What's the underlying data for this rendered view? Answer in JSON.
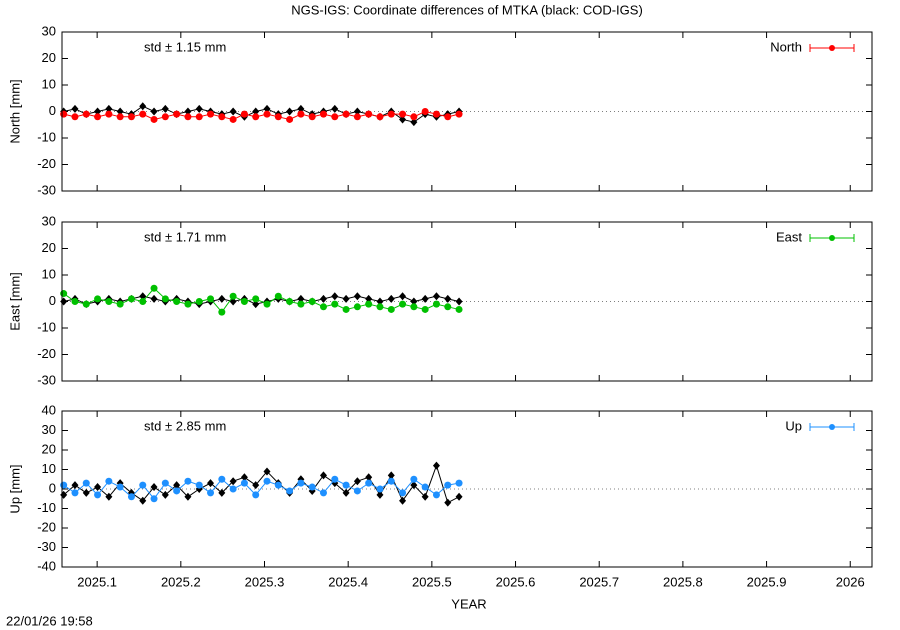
{
  "title": "NGS-IGS: Coordinate differences of MTKA (black: COD-IGS)",
  "timestamp": "22/01/26 19:58",
  "chart_data": [
    {
      "type": "line",
      "ylabel": "North [mm]",
      "annotation": "std ± 1.15 mm",
      "legend": "top right",
      "ylim": [
        -30,
        30
      ],
      "yticks": [
        -30,
        -20,
        -10,
        0,
        10,
        20,
        30
      ],
      "xlim": [
        2025.058,
        2026.026
      ],
      "xticks": [
        2025.1,
        2025.2,
        2025.3,
        2025.4,
        2025.5,
        2025.6,
        2025.7,
        2025.8,
        2025.9,
        2026
      ],
      "x": [
        2025.06,
        2025.0735,
        2025.087,
        2025.1005,
        2025.114,
        2025.1275,
        2025.141,
        2025.1545,
        2025.168,
        2025.1815,
        2025.195,
        2025.2085,
        2025.222,
        2025.2355,
        2025.249,
        2025.2625,
        2025.276,
        2025.2895,
        2025.303,
        2025.3165,
        2025.33,
        2025.3435,
        2025.357,
        2025.3705,
        2025.384,
        2025.3975,
        2025.411,
        2025.4245,
        2025.438,
        2025.4515,
        2025.465,
        2025.4785,
        2025.492,
        2025.5055,
        2025.519,
        2025.5325
      ],
      "series": [
        {
          "color": "#000000",
          "values": [
            0,
            1,
            -1,
            0,
            1,
            0,
            -1,
            2,
            0,
            1,
            -1,
            0,
            1,
            0,
            -1,
            0,
            -2,
            0,
            1,
            -1,
            0,
            1,
            -1,
            0,
            1,
            -1,
            0,
            -1,
            -2,
            0,
            -3,
            -4,
            -1,
            -2,
            -1,
            0
          ]
        },
        {
          "name": "North",
          "color": "#ff0000",
          "values": [
            -1,
            -2,
            -1,
            -2,
            -1,
            -2,
            -2,
            -1,
            -3,
            -2,
            -1,
            -2,
            -2,
            -1,
            -2,
            -3,
            -1,
            -2,
            -1,
            -2,
            -3,
            -1,
            -2,
            -1,
            -2,
            -1,
            -2,
            -1,
            -2,
            -1,
            -1,
            -2,
            0,
            -1,
            -2,
            -1
          ]
        }
      ]
    },
    {
      "type": "line",
      "ylabel": "East [mm]",
      "annotation": "std ± 1.71 mm",
      "legend": "top right",
      "ylim": [
        -30,
        30
      ],
      "yticks": [
        -30,
        -20,
        -10,
        0,
        10,
        20,
        30
      ],
      "xlim": [
        2025.058,
        2026.026
      ],
      "xticks": [
        2025.1,
        2025.2,
        2025.3,
        2025.4,
        2025.5,
        2025.6,
        2025.7,
        2025.8,
        2025.9,
        2026
      ],
      "x": [
        2025.06,
        2025.0735,
        2025.087,
        2025.1005,
        2025.114,
        2025.1275,
        2025.141,
        2025.1545,
        2025.168,
        2025.1815,
        2025.195,
        2025.2085,
        2025.222,
        2025.2355,
        2025.249,
        2025.2625,
        2025.276,
        2025.2895,
        2025.303,
        2025.3165,
        2025.33,
        2025.3435,
        2025.357,
        2025.3705,
        2025.384,
        2025.3975,
        2025.411,
        2025.4245,
        2025.438,
        2025.4515,
        2025.465,
        2025.4785,
        2025.492,
        2025.5055,
        2025.519,
        2025.5325
      ],
      "series": [
        {
          "color": "#000000",
          "values": [
            0,
            1,
            -1,
            0,
            1,
            0,
            1,
            2,
            1,
            0,
            1,
            0,
            -1,
            0,
            1,
            0,
            1,
            -1,
            0,
            1,
            0,
            1,
            0,
            1,
            2,
            1,
            2,
            1,
            0,
            1,
            2,
            0,
            1,
            2,
            1,
            0
          ]
        },
        {
          "name": "East",
          "color": "#00c000",
          "values": [
            3,
            0,
            -1,
            1,
            0,
            -1,
            1,
            0,
            5,
            1,
            0,
            -1,
            0,
            1,
            -4,
            2,
            0,
            1,
            -1,
            2,
            0,
            -1,
            0,
            -2,
            -1,
            -3,
            -2,
            -1,
            -2,
            -3,
            -1,
            -2,
            -3,
            -1,
            -2,
            -3
          ]
        }
      ]
    },
    {
      "type": "line",
      "ylabel": "Up [mm]",
      "annotation": "std ± 2.85 mm",
      "legend": "top right",
      "xlabel": "YEAR",
      "ylim": [
        -40,
        40
      ],
      "yticks": [
        -40,
        -30,
        -20,
        -10,
        0,
        10,
        20,
        30,
        40
      ],
      "xlim": [
        2025.058,
        2026.026
      ],
      "xticks": [
        2025.1,
        2025.2,
        2025.3,
        2025.4,
        2025.5,
        2025.6,
        2025.7,
        2025.8,
        2025.9,
        2026
      ],
      "x": [
        2025.06,
        2025.0735,
        2025.087,
        2025.1005,
        2025.114,
        2025.1275,
        2025.141,
        2025.1545,
        2025.168,
        2025.1815,
        2025.195,
        2025.2085,
        2025.222,
        2025.2355,
        2025.249,
        2025.2625,
        2025.276,
        2025.2895,
        2025.303,
        2025.3165,
        2025.33,
        2025.3435,
        2025.357,
        2025.3705,
        2025.384,
        2025.3975,
        2025.411,
        2025.4245,
        2025.438,
        2025.4515,
        2025.465,
        2025.4785,
        2025.492,
        2025.5055,
        2025.519,
        2025.5325
      ],
      "series": [
        {
          "color": "#000000",
          "values": [
            -3,
            2,
            -2,
            1,
            -4,
            3,
            -2,
            -6,
            1,
            -3,
            2,
            -4,
            0,
            3,
            -2,
            4,
            6,
            2,
            9,
            3,
            -2,
            5,
            -1,
            7,
            3,
            -2,
            4,
            6,
            -3,
            7,
            -6,
            2,
            -4,
            12,
            -7,
            -4
          ]
        },
        {
          "name": "Up",
          "color": "#1e90ff",
          "values": [
            2,
            -2,
            3,
            -3,
            4,
            1,
            -4,
            2,
            -5,
            3,
            -1,
            4,
            2,
            -2,
            5,
            0,
            3,
            -3,
            4,
            2,
            -1,
            3,
            1,
            -2,
            5,
            2,
            -1,
            3,
            0,
            4,
            -2,
            5,
            1,
            -3,
            2,
            3
          ]
        }
      ]
    }
  ]
}
